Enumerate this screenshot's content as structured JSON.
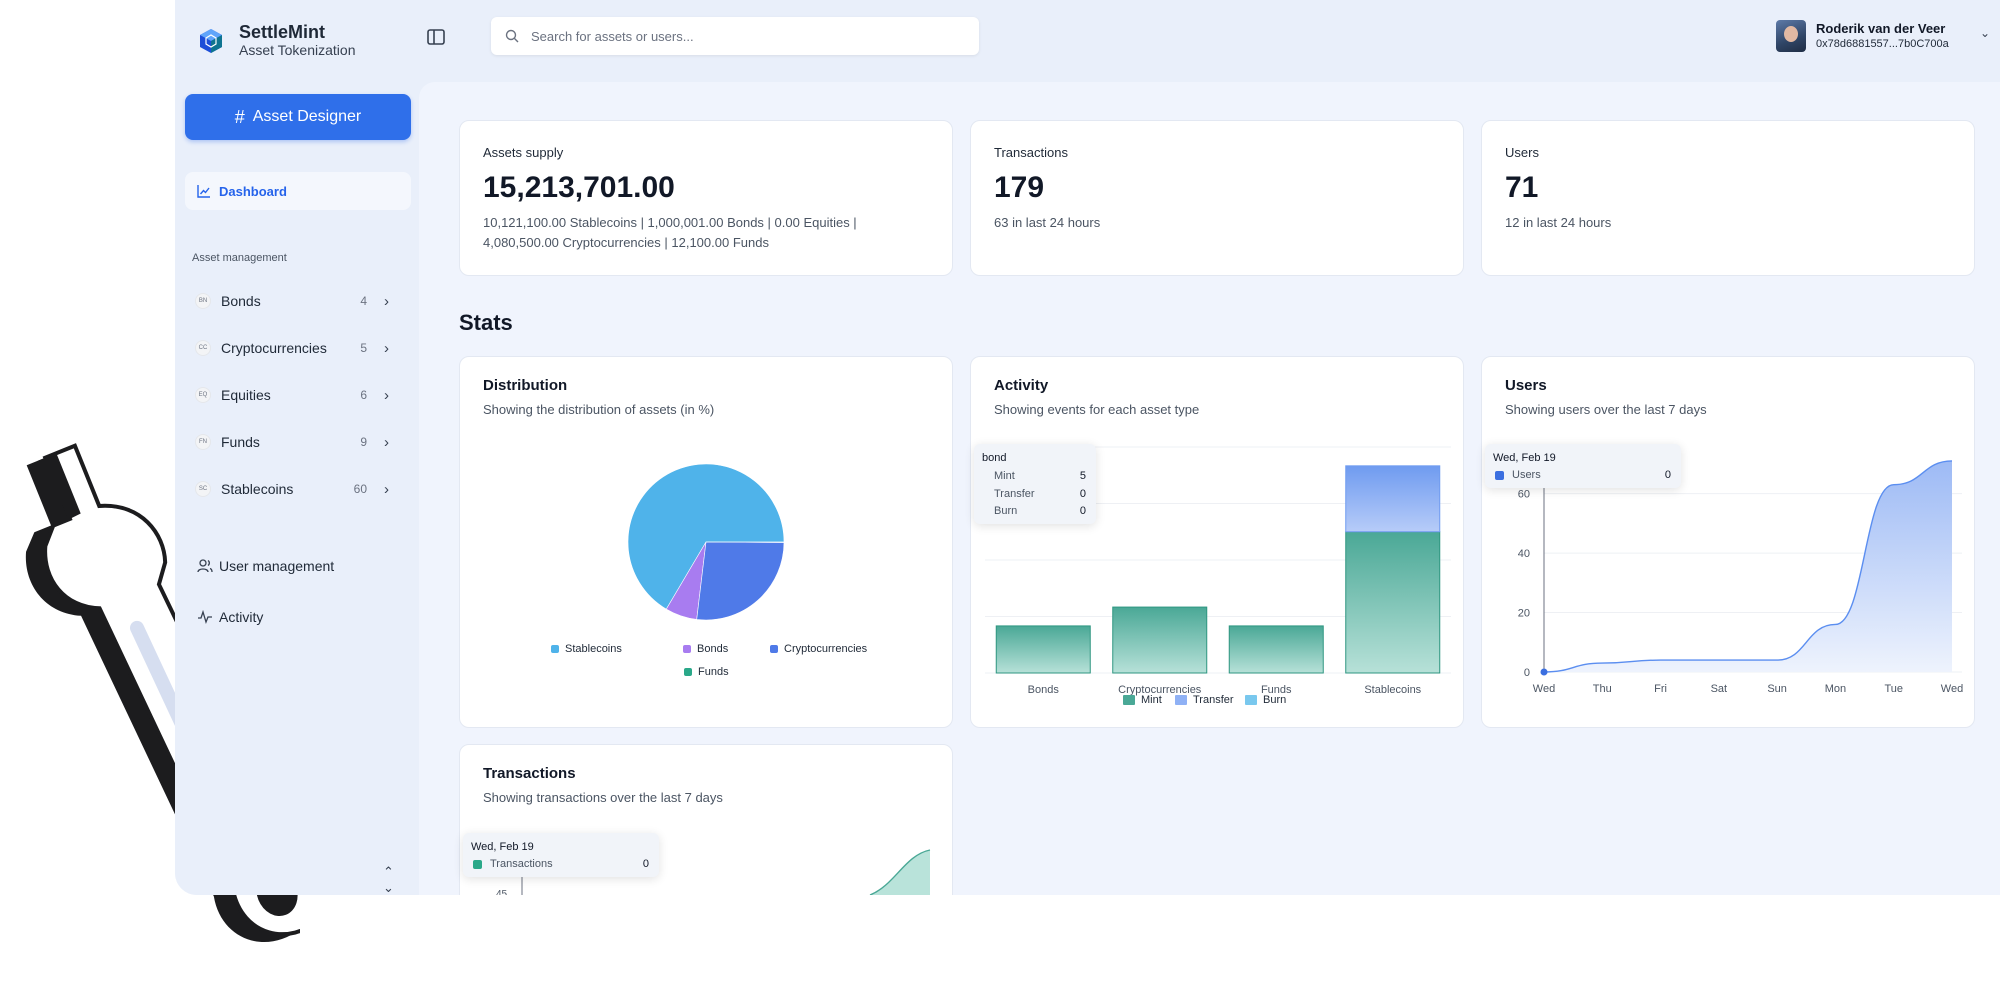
{
  "brand": {
    "name": "SettleMint",
    "subtitle": "Asset Tokenization"
  },
  "sidebar": {
    "designer_button": "Asset Designer",
    "dashboard_label": "Dashboard",
    "section_label": "Asset management",
    "assets": [
      {
        "abbr": "BN",
        "label": "Bonds",
        "count": "4"
      },
      {
        "abbr": "CC",
        "label": "Cryptocurrencies",
        "count": "5"
      },
      {
        "abbr": "EQ",
        "label": "Equities",
        "count": "6"
      },
      {
        "abbr": "FN",
        "label": "Funds",
        "count": "9"
      },
      {
        "abbr": "SC",
        "label": "Stablecoins",
        "count": "60"
      }
    ],
    "user_management": "User management",
    "activity": "Activity"
  },
  "search": {
    "placeholder": "Search for assets or users..."
  },
  "user": {
    "name": "Roderik van der Veer",
    "address": "0x78d6881557...7b0C700a"
  },
  "stat_cards": [
    {
      "label": "Assets supply",
      "value": "15,213,701.00",
      "desc": "10,121,100.00 Stablecoins | 1,000,001.00 Bonds | 0.00 Equities | 4,080,500.00 Cryptocurrencies | 12,100.00 Funds"
    },
    {
      "label": "Transactions",
      "value": "179",
      "desc": "63 in last 24 hours"
    },
    {
      "label": "Users",
      "value": "71",
      "desc": "12 in last 24 hours"
    }
  ],
  "stats_heading": "Stats",
  "distribution": {
    "title": "Distribution",
    "subtitle": "Showing the distribution of assets (in %)",
    "legend": [
      "Stablecoins",
      "Bonds",
      "Cryptocurrencies",
      "Funds"
    ]
  },
  "activity_card": {
    "title": "Activity",
    "subtitle": "Showing events for each asset type",
    "tooltip": {
      "title": "bond",
      "rows": [
        {
          "label": "Mint",
          "value": "5"
        },
        {
          "label": "Transfer",
          "value": "0"
        },
        {
          "label": "Burn",
          "value": "0"
        }
      ]
    },
    "legend": [
      "Mint",
      "Transfer",
      "Burn"
    ]
  },
  "users_card": {
    "title": "Users",
    "subtitle": "Showing users over the last 7 days",
    "tooltip": {
      "date": "Wed, Feb 19",
      "label": "Users",
      "value": "0"
    }
  },
  "transactions_card": {
    "title": "Transactions",
    "subtitle": "Showing transactions over the last 7 days",
    "tooltip": {
      "date": "Wed, Feb 19",
      "label": "Transactions",
      "value": "0"
    },
    "partial_tick": "45"
  },
  "colors": {
    "primary": "#2f6fea",
    "stablecoins": "#4fb3ea",
    "bonds": "#a87cf0",
    "cryptocurrencies": "#4f7ae8",
    "funds": "#2aa889",
    "mint": "#4aa896",
    "transfer": "#8fb1f5",
    "burn": "#79c8ee"
  },
  "chart_data": [
    {
      "type": "pie",
      "title": "Distribution",
      "categories": [
        "Stablecoins",
        "Bonds",
        "Cryptocurrencies",
        "Funds"
      ],
      "values": [
        66.5,
        6.6,
        26.8,
        0.1
      ],
      "legend_position": "bottom"
    },
    {
      "type": "bar",
      "title": "Activity",
      "categories": [
        "Bonds",
        "Cryptocurrencies",
        "Funds",
        "Stablecoins"
      ],
      "series": [
        {
          "name": "Mint",
          "values": [
            5,
            7,
            5,
            15
          ]
        },
        {
          "name": "Transfer",
          "values": [
            0,
            0,
            0,
            7
          ]
        },
        {
          "name": "Burn",
          "values": [
            0,
            0,
            0,
            0
          ]
        }
      ],
      "stacked": true,
      "ylim": [
        0,
        24
      ],
      "grid": true,
      "legend_position": "bottom"
    },
    {
      "type": "area",
      "title": "Users",
      "x": [
        "Wed",
        "Thu",
        "Fri",
        "Sat",
        "Sun",
        "Mon",
        "Tue",
        "Wed"
      ],
      "series": [
        {
          "name": "Users",
          "values": [
            0,
            3,
            4,
            4,
            4,
            16,
            63,
            71
          ]
        }
      ],
      "yticks": [
        0,
        20,
        40,
        60
      ],
      "ylim": [
        0,
        75
      ],
      "grid": true
    }
  ]
}
